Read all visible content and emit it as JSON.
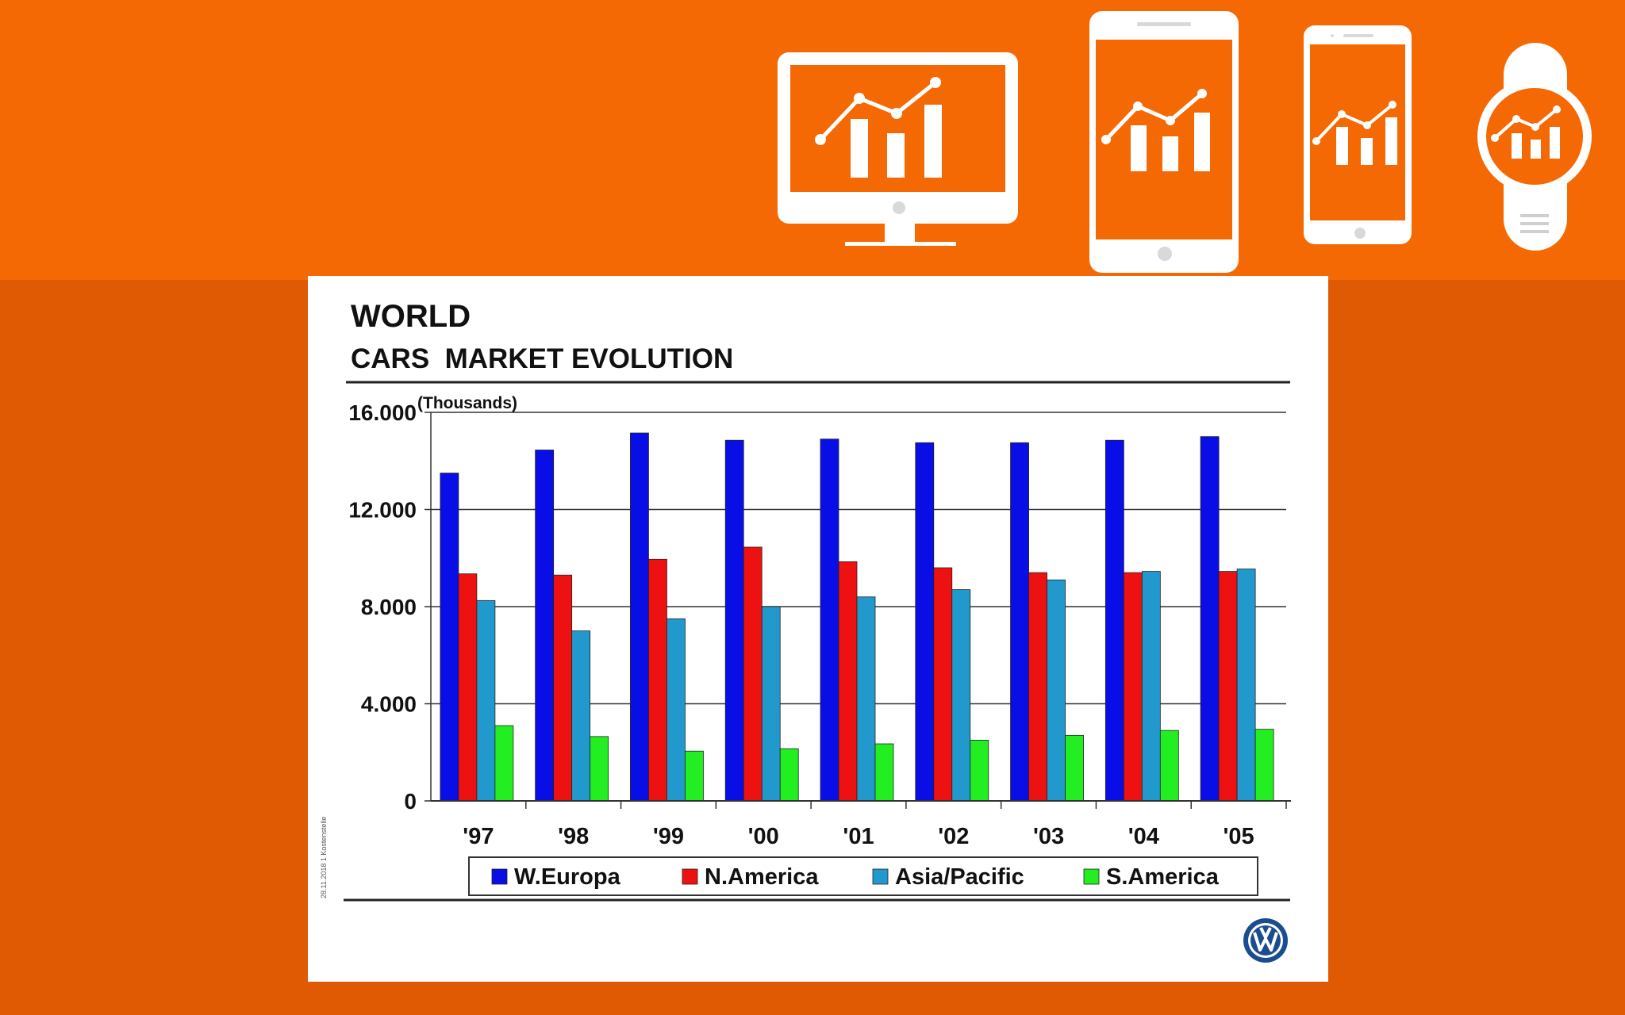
{
  "icons": [
    "desktop-monitor-chart-icon",
    "tablet-chart-icon",
    "phone-chart-icon",
    "smartwatch-chart-icon"
  ],
  "colors": {
    "banner": "#f56905",
    "background": "#df5a02",
    "series": [
      "#0a0ee6",
      "#ee1111",
      "#2299cc",
      "#22ee22"
    ]
  },
  "slide": {
    "title": "WORLD",
    "subtitle": "CARS  MARKET EVOLUTION",
    "side_note": "28.11.2018   1   Kostenstelle",
    "logo": "vw-logo-icon"
  },
  "chart_data": {
    "type": "bar",
    "unit_label": "(Thousands)",
    "categories": [
      "'97",
      "'98",
      "'99",
      "'00",
      "'01",
      "'02",
      "'03",
      "'04",
      "'05"
    ],
    "ylim": [
      0,
      16000
    ],
    "yticks": [
      0,
      4000,
      8000,
      12000,
      16000
    ],
    "ytick_labels": [
      "0",
      "4.000",
      "8.000",
      "12.000",
      "16.000"
    ],
    "grid": true,
    "legend_position": "bottom",
    "series": [
      {
        "name": "W.Europa",
        "values": [
          13500,
          14450,
          15150,
          14850,
          14900,
          14750,
          14750,
          14850,
          15000
        ]
      },
      {
        "name": "N.America",
        "values": [
          9350,
          9300,
          9950,
          10450,
          9850,
          9600,
          9400,
          9400,
          9450
        ]
      },
      {
        "name": "Asia/Pacific",
        "values": [
          8250,
          7000,
          7500,
          8000,
          8400,
          8700,
          9100,
          9450,
          9550
        ]
      },
      {
        "name": "S.America",
        "values": [
          3100,
          2650,
          2050,
          2150,
          2350,
          2500,
          2700,
          2900,
          2950
        ]
      }
    ]
  }
}
